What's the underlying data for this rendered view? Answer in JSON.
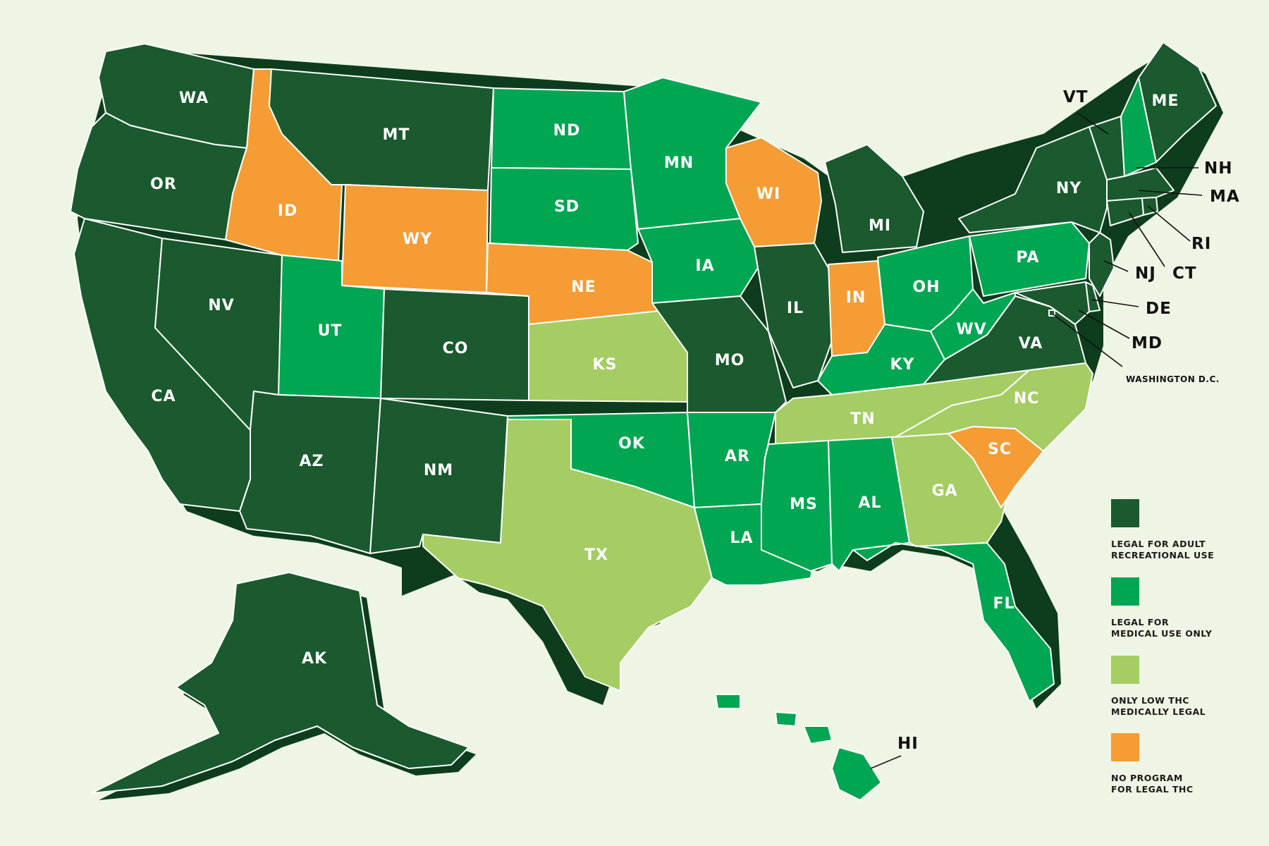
{
  "colors": {
    "recreational": "#1a5a2e",
    "medical": "#00a651",
    "low_thc": "#a5cd63",
    "none": "#f59c34",
    "shadow": "#0d3d1c",
    "background": "#eff5e4"
  },
  "legend": [
    {
      "category": "recreational",
      "line1": "LEGAL FOR ADULT",
      "line2": "RECREATIONAL USE"
    },
    {
      "category": "medical",
      "line1": "LEGAL FOR",
      "line2": "MEDICAL USE ONLY"
    },
    {
      "category": "low_thc",
      "line1": "ONLY LOW THC",
      "line2": "MEDICALLY LEGAL"
    },
    {
      "category": "none",
      "line1": "NO PROGRAM",
      "line2": "FOR LEGAL THC"
    }
  ],
  "states": [
    {
      "code": "WA",
      "category": "recreational"
    },
    {
      "code": "OR",
      "category": "recreational"
    },
    {
      "code": "CA",
      "category": "recreational"
    },
    {
      "code": "NV",
      "category": "recreational"
    },
    {
      "code": "ID",
      "category": "none"
    },
    {
      "code": "MT",
      "category": "recreational"
    },
    {
      "code": "WY",
      "category": "none"
    },
    {
      "code": "UT",
      "category": "medical"
    },
    {
      "code": "AZ",
      "category": "recreational"
    },
    {
      "code": "CO",
      "category": "recreational"
    },
    {
      "code": "NM",
      "category": "recreational"
    },
    {
      "code": "ND",
      "category": "medical"
    },
    {
      "code": "SD",
      "category": "medical"
    },
    {
      "code": "NE",
      "category": "none"
    },
    {
      "code": "KS",
      "category": "low_thc"
    },
    {
      "code": "OK",
      "category": "medical"
    },
    {
      "code": "TX",
      "category": "low_thc"
    },
    {
      "code": "MN",
      "category": "medical"
    },
    {
      "code": "IA",
      "category": "medical"
    },
    {
      "code": "MO",
      "category": "recreational"
    },
    {
      "code": "AR",
      "category": "medical"
    },
    {
      "code": "LA",
      "category": "medical"
    },
    {
      "code": "WI",
      "category": "none"
    },
    {
      "code": "IL",
      "category": "recreational"
    },
    {
      "code": "MI",
      "category": "recreational"
    },
    {
      "code": "IN",
      "category": "none"
    },
    {
      "code": "OH",
      "category": "medical"
    },
    {
      "code": "KY",
      "category": "medical"
    },
    {
      "code": "TN",
      "category": "low_thc"
    },
    {
      "code": "MS",
      "category": "medical"
    },
    {
      "code": "AL",
      "category": "medical"
    },
    {
      "code": "GA",
      "category": "low_thc"
    },
    {
      "code": "FL",
      "category": "medical"
    },
    {
      "code": "SC",
      "category": "none"
    },
    {
      "code": "NC",
      "category": "low_thc"
    },
    {
      "code": "VA",
      "category": "recreational"
    },
    {
      "code": "WV",
      "category": "medical"
    },
    {
      "code": "PA",
      "category": "medical"
    },
    {
      "code": "NY",
      "category": "recreational"
    },
    {
      "code": "VT",
      "category": "recreational"
    },
    {
      "code": "NH",
      "category": "medical"
    },
    {
      "code": "ME",
      "category": "recreational"
    },
    {
      "code": "MA",
      "category": "recreational"
    },
    {
      "code": "RI",
      "category": "recreational"
    },
    {
      "code": "CT",
      "category": "recreational"
    },
    {
      "code": "NJ",
      "category": "recreational"
    },
    {
      "code": "DE",
      "category": "recreational"
    },
    {
      "code": "MD",
      "category": "recreational"
    },
    {
      "code": "DC",
      "category": "recreational"
    },
    {
      "code": "AK",
      "category": "recreational"
    },
    {
      "code": "HI",
      "category": "medical"
    }
  ],
  "external_labels": {
    "VT": "VT",
    "NH": "NH",
    "MA": "MA",
    "RI": "RI",
    "CT": "CT",
    "NJ": "NJ",
    "DE": "DE",
    "MD": "MD",
    "HI": "HI",
    "DC": "WASHINGTON D.C."
  }
}
